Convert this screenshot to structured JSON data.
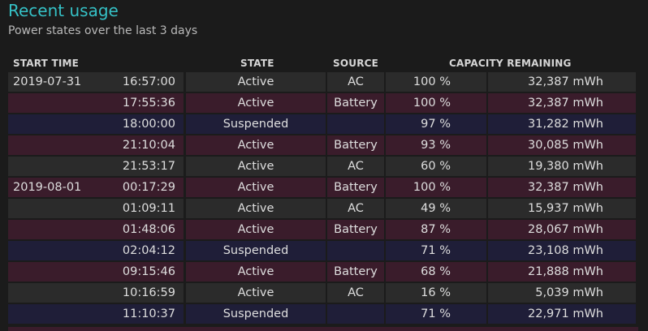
{
  "title": "Recent usage",
  "subtitle": "Power states over the last 3 days",
  "columns": {
    "start_time": "START TIME",
    "state": "STATE",
    "source": "SOURCE",
    "capacity": "CAPACITY REMAINING"
  },
  "rows": [
    {
      "date": "2019-07-31",
      "time": "16:57:00",
      "state": "Active",
      "source": "AC",
      "pct": "100 %",
      "mwh": "32,387 mWh",
      "style": "gray"
    },
    {
      "date": "",
      "time": "17:55:36",
      "state": "Active",
      "source": "Battery",
      "pct": "100 %",
      "mwh": "32,387 mWh",
      "style": "maroon"
    },
    {
      "date": "",
      "time": "18:00:00",
      "state": "Suspended",
      "source": "",
      "pct": "97 %",
      "mwh": "31,282 mWh",
      "style": "navy"
    },
    {
      "date": "",
      "time": "21:10:04",
      "state": "Active",
      "source": "Battery",
      "pct": "93 %",
      "mwh": "30,085 mWh",
      "style": "maroon"
    },
    {
      "date": "",
      "time": "21:53:17",
      "state": "Active",
      "source": "AC",
      "pct": "60 %",
      "mwh": "19,380 mWh",
      "style": "gray"
    },
    {
      "date": "2019-08-01",
      "time": "00:17:29",
      "state": "Active",
      "source": "Battery",
      "pct": "100 %",
      "mwh": "32,387 mWh",
      "style": "maroon"
    },
    {
      "date": "",
      "time": "01:09:11",
      "state": "Active",
      "source": "AC",
      "pct": "49 %",
      "mwh": "15,937 mWh",
      "style": "gray"
    },
    {
      "date": "",
      "time": "01:48:06",
      "state": "Active",
      "source": "Battery",
      "pct": "87 %",
      "mwh": "28,067 mWh",
      "style": "maroon"
    },
    {
      "date": "",
      "time": "02:04:12",
      "state": "Suspended",
      "source": "",
      "pct": "71 %",
      "mwh": "23,108 mWh",
      "style": "navy"
    },
    {
      "date": "",
      "time": "09:15:46",
      "state": "Active",
      "source": "Battery",
      "pct": "68 %",
      "mwh": "21,888 mWh",
      "style": "maroon"
    },
    {
      "date": "",
      "time": "10:16:59",
      "state": "Active",
      "source": "AC",
      "pct": "16 %",
      "mwh": "5,039 mWh",
      "style": "gray"
    },
    {
      "date": "",
      "time": "11:10:37",
      "state": "Suspended",
      "source": "",
      "pct": "71 %",
      "mwh": "22,971 mWh",
      "style": "navy"
    }
  ]
}
